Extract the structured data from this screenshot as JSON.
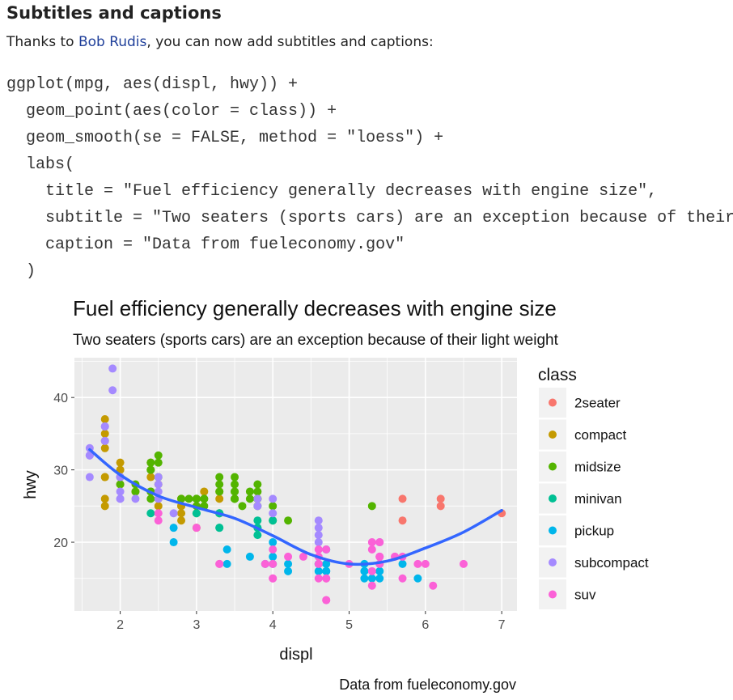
{
  "section": {
    "heading": "Subtitles and captions",
    "intro_before": "Thanks to ",
    "intro_link": "Bob Rudis",
    "intro_after": ", you can now add subtitles and captions:"
  },
  "code": {
    "lines": [
      "ggplot(mpg, aes(displ, hwy)) +",
      "  geom_point(aes(color = class)) +",
      "  geom_smooth(se = FALSE, method = \"loess\") +",
      "  labs(",
      "    title = \"Fuel efficiency generally decreases with engine size\",",
      "    subtitle = \"Two seaters (sports cars) are an exception because of their light weight\",",
      "    caption = \"Data from fueleconomy.gov\"",
      "  )"
    ]
  },
  "chart_data": {
    "type": "scatter",
    "title": "Fuel efficiency generally decreases with engine size",
    "subtitle": "Two seaters (sports cars) are an exception because of their light weight",
    "caption": "Data from fueleconomy.gov",
    "xlabel": "displ",
    "ylabel": "hwy",
    "xlim": [
      1.4,
      7.2
    ],
    "ylim": [
      10.5,
      45.5
    ],
    "xticks": [
      2,
      3,
      4,
      5,
      6,
      7
    ],
    "yticks": [
      20,
      30,
      40
    ],
    "grid": true,
    "legend": {
      "title": "class",
      "position": "right"
    },
    "series": [
      {
        "name": "2seater",
        "color": "#F8766D",
        "points": [
          [
            5.7,
            26
          ],
          [
            5.7,
            23
          ],
          [
            6.2,
            26
          ],
          [
            6.2,
            25
          ],
          [
            7.0,
            24
          ]
        ]
      },
      {
        "name": "compact",
        "color": "#C49A00",
        "points": [
          [
            1.8,
            29
          ],
          [
            1.8,
            29
          ],
          [
            2.0,
            31
          ],
          [
            2.0,
            30
          ],
          [
            2.8,
            26
          ],
          [
            2.8,
            26
          ],
          [
            3.1,
            27
          ],
          [
            1.8,
            26
          ],
          [
            1.8,
            25
          ],
          [
            2.0,
            28
          ],
          [
            2.0,
            28
          ],
          [
            2.8,
            25
          ],
          [
            2.8,
            24
          ],
          [
            2.8,
            25
          ],
          [
            2.4,
            31
          ],
          [
            2.4,
            29
          ],
          [
            2.4,
            27
          ],
          [
            2.5,
            25
          ],
          [
            2.5,
            26
          ],
          [
            2.2,
            27
          ],
          [
            3.0,
            26
          ],
          [
            3.3,
            27
          ],
          [
            3.3,
            26
          ],
          [
            1.8,
            37
          ],
          [
            1.8,
            35
          ],
          [
            1.8,
            33
          ],
          [
            1.8,
            34
          ],
          [
            2.0,
            29
          ],
          [
            2.0,
            30
          ],
          [
            2.8,
            23
          ],
          [
            3.0,
            22
          ],
          [
            3.3,
            24
          ],
          [
            2.4,
            30
          ],
          [
            2.5,
            28
          ]
        ]
      },
      {
        "name": "midsize",
        "color": "#53B400",
        "points": [
          [
            2.4,
            27
          ],
          [
            2.4,
            30
          ],
          [
            3.1,
            26
          ],
          [
            3.5,
            26
          ],
          [
            3.6,
            25
          ],
          [
            2.4,
            31
          ],
          [
            3.0,
            26
          ],
          [
            3.3,
            28
          ],
          [
            3.5,
            29
          ],
          [
            3.5,
            27
          ],
          [
            3.8,
            26
          ],
          [
            3.8,
            28
          ],
          [
            3.8,
            26
          ],
          [
            4.0,
            23
          ],
          [
            5.3,
            25
          ],
          [
            2.5,
            32
          ],
          [
            2.5,
            31
          ],
          [
            2.5,
            29
          ],
          [
            3.0,
            25
          ],
          [
            3.0,
            26
          ],
          [
            3.5,
            27
          ],
          [
            3.5,
            26
          ],
          [
            2.0,
            29
          ],
          [
            2.0,
            28
          ],
          [
            2.4,
            27
          ],
          [
            2.8,
            26
          ],
          [
            3.0,
            24
          ],
          [
            3.0,
            26
          ],
          [
            3.1,
            25
          ],
          [
            3.1,
            26
          ],
          [
            3.3,
            29
          ],
          [
            3.3,
            27
          ],
          [
            3.7,
            27
          ],
          [
            3.8,
            26
          ],
          [
            4.0,
            25
          ],
          [
            4.2,
            23
          ],
          [
            2.2,
            27
          ],
          [
            2.2,
            28
          ],
          [
            2.4,
            26
          ],
          [
            2.4,
            30
          ],
          [
            3.5,
            28
          ],
          [
            3.7,
            26
          ],
          [
            3.8,
            27
          ],
          [
            2.9,
            26
          ],
          [
            3.5,
            26
          ],
          [
            3.8,
            25
          ]
        ]
      },
      {
        "name": "minivan",
        "color": "#00C094",
        "points": [
          [
            2.4,
            24
          ],
          [
            3.0,
            24
          ],
          [
            3.3,
            22
          ],
          [
            3.3,
            22
          ],
          [
            3.3,
            24
          ],
          [
            3.3,
            24
          ],
          [
            3.8,
            22
          ],
          [
            3.8,
            21
          ],
          [
            4.0,
            23
          ],
          [
            3.8,
            23
          ],
          [
            3.8,
            22
          ]
        ]
      },
      {
        "name": "pickup",
        "color": "#00B6EB",
        "points": [
          [
            2.7,
            20
          ],
          [
            2.7,
            22
          ],
          [
            3.4,
            17
          ],
          [
            3.4,
            19
          ],
          [
            4.0,
            18
          ],
          [
            4.0,
            20
          ],
          [
            4.2,
            17
          ],
          [
            4.6,
            17
          ],
          [
            4.6,
            16
          ],
          [
            4.7,
            16
          ],
          [
            4.7,
            17
          ],
          [
            4.7,
            16
          ],
          [
            5.2,
            17
          ],
          [
            5.2,
            15
          ],
          [
            5.7,
            17
          ],
          [
            5.9,
            15
          ],
          [
            3.7,
            18
          ],
          [
            3.9,
            17
          ],
          [
            4.7,
            19
          ],
          [
            5.2,
            16
          ],
          [
            5.3,
            15
          ],
          [
            5.4,
            16
          ],
          [
            5.4,
            15
          ],
          [
            5.4,
            17
          ],
          [
            4.0,
            17
          ],
          [
            4.2,
            16
          ],
          [
            4.6,
            17
          ]
        ]
      },
      {
        "name": "subcompact",
        "color": "#A58AFF",
        "points": [
          [
            1.6,
            33
          ],
          [
            1.6,
            32
          ],
          [
            1.6,
            32
          ],
          [
            1.6,
            29
          ],
          [
            1.6,
            32
          ],
          [
            1.8,
            34
          ],
          [
            1.8,
            36
          ],
          [
            1.8,
            36
          ],
          [
            2.0,
            29
          ],
          [
            2.0,
            26
          ],
          [
            1.9,
            44
          ],
          [
            1.9,
            41
          ],
          [
            2.0,
            29
          ],
          [
            2.0,
            26
          ],
          [
            2.5,
            28
          ],
          [
            2.5,
            29
          ],
          [
            2.5,
            27
          ],
          [
            2.7,
            24
          ],
          [
            3.8,
            26
          ],
          [
            3.8,
            25
          ],
          [
            4.0,
            24
          ],
          [
            4.0,
            26
          ],
          [
            4.6,
            23
          ],
          [
            4.6,
            22
          ],
          [
            5.4,
            20
          ],
          [
            2.5,
            26
          ],
          [
            2.0,
            27
          ],
          [
            2.2,
            26
          ],
          [
            4.6,
            21
          ],
          [
            4.6,
            20
          ]
        ]
      },
      {
        "name": "suv",
        "color": "#FB61D7",
        "points": [
          [
            2.5,
            23
          ],
          [
            2.5,
            24
          ],
          [
            3.0,
            22
          ],
          [
            3.3,
            17
          ],
          [
            3.9,
            17
          ],
          [
            4.0,
            17
          ],
          [
            4.2,
            18
          ],
          [
            4.4,
            18
          ],
          [
            4.6,
            17
          ],
          [
            4.7,
            15
          ],
          [
            4.7,
            19
          ],
          [
            4.7,
            12
          ],
          [
            5.0,
            17
          ],
          [
            5.3,
            14
          ],
          [
            5.3,
            19
          ],
          [
            5.4,
            20
          ],
          [
            5.4,
            18
          ],
          [
            5.6,
            18
          ],
          [
            5.7,
            15
          ],
          [
            5.9,
            17
          ],
          [
            6.0,
            17
          ],
          [
            6.1,
            14
          ],
          [
            6.5,
            17
          ],
          [
            4.0,
            15
          ],
          [
            4.6,
            19
          ],
          [
            4.6,
            18
          ],
          [
            4.7,
            15
          ],
          [
            5.3,
            16
          ],
          [
            5.3,
            20
          ],
          [
            5.4,
            17
          ],
          [
            5.4,
            18
          ],
          [
            5.7,
            18
          ],
          [
            3.3,
            17
          ],
          [
            4.0,
            19
          ],
          [
            4.7,
            12
          ],
          [
            4.0,
            15
          ],
          [
            4.6,
            15
          ],
          [
            5.4,
            18
          ],
          [
            5.6,
            18
          ]
        ]
      }
    ],
    "smooth": {
      "color": "#3366FF",
      "points": [
        [
          1.6,
          32.8
        ],
        [
          2.0,
          29.3
        ],
        [
          2.5,
          26.4
        ],
        [
          3.0,
          24.8
        ],
        [
          3.5,
          23.3
        ],
        [
          4.0,
          20.9
        ],
        [
          4.5,
          18.3
        ],
        [
          5.0,
          17.0
        ],
        [
          5.5,
          17.4
        ],
        [
          6.0,
          19.2
        ],
        [
          6.5,
          21.4
        ],
        [
          7.0,
          24.4
        ]
      ]
    }
  }
}
